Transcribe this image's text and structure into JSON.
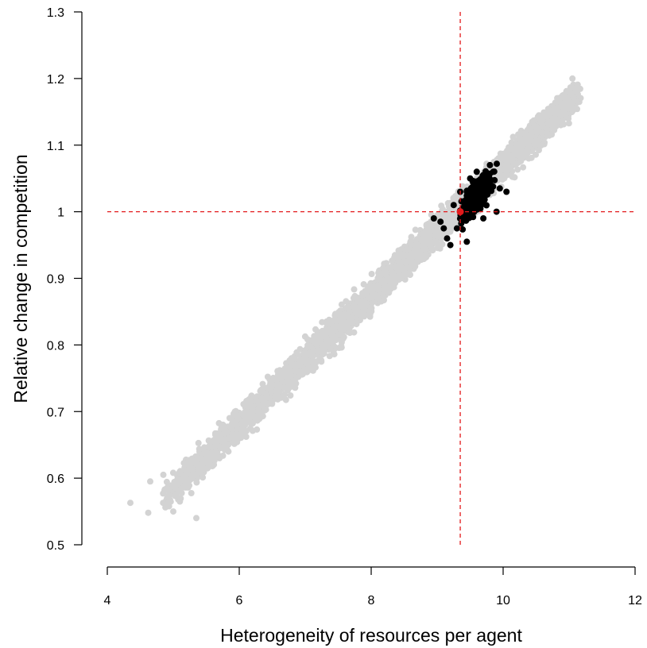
{
  "chart_data": {
    "type": "scatter",
    "title": "",
    "xlabel": "Heterogeneity of resources per agent",
    "ylabel": "Relative change in competition",
    "xlim": [
      4,
      12
    ],
    "ylim": [
      0.5,
      1.3
    ],
    "xticks": [
      4,
      6,
      8,
      10,
      12
    ],
    "yticks": [
      0.5,
      0.6,
      0.7,
      0.8,
      0.9,
      1.0,
      1.1,
      1.2,
      1.3
    ],
    "xtick_labels": [
      "4",
      "6",
      "8",
      "10",
      "12"
    ],
    "ytick_labels": [
      "0.5",
      "0.6",
      "0.7",
      "0.8",
      "0.9",
      "1",
      "1.1",
      "1.2",
      "1.3"
    ],
    "grid": false,
    "legend": "none",
    "reference_lines": {
      "vertical_x": 9.35,
      "horizontal_y": 1.0,
      "color": "#e31a1c",
      "style": "dashed"
    },
    "series": [
      {
        "color": "#d3d3d3",
        "description_points": [
          [
            4.35,
            0.563
          ],
          [
            4.62,
            0.548
          ],
          [
            4.65,
            0.595
          ],
          [
            4.85,
            0.605
          ],
          [
            4.9,
            0.56
          ],
          [
            5.0,
            0.55
          ],
          [
            5.1,
            0.565
          ],
          [
            5.2,
            0.59
          ],
          [
            5.3,
            0.6
          ],
          [
            5.35,
            0.54
          ],
          [
            5.45,
            0.615
          ],
          [
            5.55,
            0.625
          ],
          [
            5.7,
            0.63
          ],
          [
            5.85,
            0.66
          ],
          [
            6.0,
            0.665
          ],
          [
            6.15,
            0.69
          ],
          [
            6.3,
            0.705
          ],
          [
            6.5,
            0.715
          ],
          [
            6.7,
            0.735
          ],
          [
            6.9,
            0.76
          ],
          [
            7.1,
            0.775
          ],
          [
            7.3,
            0.795
          ],
          [
            7.5,
            0.815
          ],
          [
            7.7,
            0.835
          ],
          [
            7.9,
            0.855
          ],
          [
            8.1,
            0.87
          ],
          [
            8.3,
            0.895
          ],
          [
            8.5,
            0.905
          ],
          [
            8.7,
            0.93
          ],
          [
            8.9,
            0.955
          ],
          [
            9.1,
            0.985
          ],
          [
            9.3,
            1.0
          ],
          [
            9.6,
            1.035
          ],
          [
            9.9,
            1.06
          ],
          [
            10.2,
            1.09
          ],
          [
            10.5,
            1.12
          ],
          [
            10.8,
            1.155
          ],
          [
            11.0,
            1.18
          ],
          [
            11.05,
            1.2
          ],
          [
            11.15,
            1.185
          ]
        ],
        "trend": {
          "x_start": 4.9,
          "x_end": 11.1,
          "y_start": 0.575,
          "y_end": 1.175,
          "spread_y": 0.035
        }
      },
      {
        "color": "#000000",
        "description_points": [
          [
            8.95,
            0.99
          ],
          [
            9.05,
            0.985
          ],
          [
            9.1,
            0.975
          ],
          [
            9.15,
            0.96
          ],
          [
            9.2,
            0.95
          ],
          [
            9.25,
            1.01
          ],
          [
            9.3,
            0.975
          ],
          [
            9.35,
            1.03
          ],
          [
            9.45,
            0.955
          ],
          [
            9.5,
            1.05
          ],
          [
            9.6,
            1.06
          ],
          [
            9.7,
            1.055
          ],
          [
            9.8,
            1.07
          ],
          [
            9.85,
            1.06
          ],
          [
            9.95,
            1.035
          ],
          [
            10.05,
            1.03
          ],
          [
            9.9,
            1.0
          ],
          [
            9.7,
            0.99
          ]
        ],
        "cluster": {
          "x_range": [
            9.0,
            10.0
          ],
          "y_range": [
            0.95,
            1.07
          ]
        }
      },
      {
        "color": "#e31a1c",
        "description_points": [
          [
            9.35,
            1.0
          ]
        ]
      }
    ]
  }
}
